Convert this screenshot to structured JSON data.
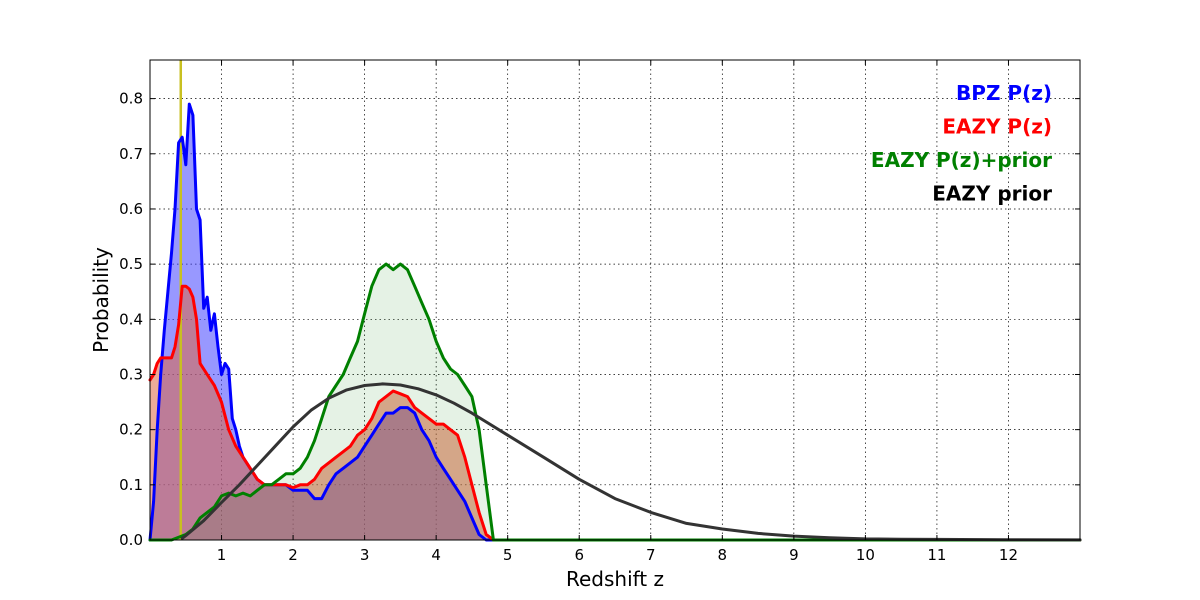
{
  "chart_data": {
    "type": "area",
    "xlabel": "Redshift z",
    "ylabel": "Probability",
    "xlim": [
      0,
      13
    ],
    "ylim": [
      0,
      0.87
    ],
    "grid": true,
    "legend_position": "top-right",
    "x_ticks": [
      1,
      2,
      3,
      4,
      5,
      6,
      7,
      8,
      9,
      10,
      11,
      12
    ],
    "x_tick_labels": [
      "1",
      "2",
      "3",
      "4",
      "5",
      "6",
      "7",
      "8",
      "9",
      "10",
      "11",
      "12"
    ],
    "y_ticks": [
      0.0,
      0.1,
      0.2,
      0.3,
      0.4,
      0.5,
      0.6,
      0.7,
      0.8
    ],
    "y_tick_labels": [
      "0.0",
      "0.1",
      "0.2",
      "0.3",
      "0.4",
      "0.5",
      "0.6",
      "0.7",
      "0.8"
    ],
    "vertical_line": {
      "x": 0.43,
      "color": "#c8c020"
    },
    "series": [
      {
        "name": "BPZ P(z)",
        "color": "#0000ff",
        "fill": "#4444ff",
        "fill_opacity": 0.55,
        "x": [
          0,
          0.05,
          0.1,
          0.15,
          0.2,
          0.25,
          0.3,
          0.35,
          0.4,
          0.45,
          0.5,
          0.55,
          0.6,
          0.65,
          0.7,
          0.75,
          0.8,
          0.85,
          0.9,
          0.95,
          1.0,
          1.05,
          1.1,
          1.15,
          1.2,
          1.25,
          1.3,
          1.4,
          1.5,
          1.6,
          1.7,
          1.8,
          1.9,
          2.0,
          2.1,
          2.2,
          2.3,
          2.4,
          2.5,
          2.6,
          2.7,
          2.8,
          2.9,
          3.0,
          3.1,
          3.2,
          3.3,
          3.4,
          3.5,
          3.6,
          3.7,
          3.8,
          3.9,
          4.0,
          4.1,
          4.2,
          4.3,
          4.4,
          4.5,
          4.6,
          4.7,
          4.8,
          13
        ],
        "values": [
          0.0,
          0.07,
          0.2,
          0.3,
          0.38,
          0.45,
          0.52,
          0.6,
          0.72,
          0.73,
          0.68,
          0.79,
          0.77,
          0.6,
          0.58,
          0.42,
          0.44,
          0.38,
          0.41,
          0.35,
          0.3,
          0.32,
          0.31,
          0.22,
          0.2,
          0.17,
          0.15,
          0.13,
          0.11,
          0.1,
          0.1,
          0.1,
          0.1,
          0.09,
          0.09,
          0.09,
          0.075,
          0.075,
          0.1,
          0.12,
          0.13,
          0.14,
          0.15,
          0.17,
          0.19,
          0.21,
          0.23,
          0.23,
          0.24,
          0.24,
          0.23,
          0.2,
          0.18,
          0.15,
          0.13,
          0.11,
          0.09,
          0.07,
          0.04,
          0.01,
          0.0,
          0.0,
          0.0
        ]
      },
      {
        "name": "EAZY P(z)",
        "color": "#ff0000",
        "fill": "#dd6644",
        "fill_opacity": 0.55,
        "x": [
          0,
          0.05,
          0.1,
          0.15,
          0.2,
          0.3,
          0.35,
          0.4,
          0.45,
          0.5,
          0.55,
          0.6,
          0.65,
          0.7,
          0.8,
          0.9,
          1.0,
          1.1,
          1.2,
          1.3,
          1.4,
          1.5,
          1.6,
          1.7,
          1.8,
          1.9,
          2.0,
          2.1,
          2.2,
          2.3,
          2.4,
          2.5,
          2.6,
          2.7,
          2.8,
          2.9,
          3.0,
          3.1,
          3.2,
          3.3,
          3.4,
          3.5,
          3.6,
          3.7,
          3.8,
          3.9,
          4.0,
          4.1,
          4.2,
          4.3,
          4.4,
          4.5,
          4.6,
          4.7,
          4.8,
          13
        ],
        "values": [
          0.29,
          0.3,
          0.32,
          0.33,
          0.33,
          0.33,
          0.35,
          0.39,
          0.46,
          0.46,
          0.455,
          0.44,
          0.4,
          0.32,
          0.3,
          0.28,
          0.25,
          0.2,
          0.17,
          0.15,
          0.13,
          0.11,
          0.1,
          0.1,
          0.1,
          0.1,
          0.095,
          0.1,
          0.1,
          0.11,
          0.13,
          0.14,
          0.15,
          0.16,
          0.17,
          0.19,
          0.2,
          0.22,
          0.25,
          0.26,
          0.27,
          0.265,
          0.26,
          0.24,
          0.23,
          0.22,
          0.21,
          0.21,
          0.2,
          0.19,
          0.15,
          0.1,
          0.05,
          0.01,
          0.0,
          0.0
        ]
      },
      {
        "name": "EAZY P(z)+prior",
        "color": "#008000",
        "fill": "#008000",
        "fill_opacity": 0.1,
        "x": [
          0,
          0.3,
          0.5,
          0.6,
          0.7,
          0.8,
          0.9,
          1.0,
          1.1,
          1.2,
          1.3,
          1.4,
          1.5,
          1.6,
          1.7,
          1.8,
          1.9,
          2.0,
          2.1,
          2.2,
          2.3,
          2.4,
          2.5,
          2.6,
          2.7,
          2.8,
          2.9,
          3.0,
          3.1,
          3.2,
          3.3,
          3.4,
          3.5,
          3.6,
          3.7,
          3.8,
          3.9,
          4.0,
          4.1,
          4.2,
          4.3,
          4.4,
          4.5,
          4.6,
          4.7,
          4.8,
          13
        ],
        "values": [
          0.0,
          0.0,
          0.01,
          0.02,
          0.04,
          0.05,
          0.06,
          0.08,
          0.085,
          0.08,
          0.085,
          0.08,
          0.09,
          0.1,
          0.1,
          0.11,
          0.12,
          0.12,
          0.13,
          0.15,
          0.18,
          0.22,
          0.26,
          0.28,
          0.3,
          0.33,
          0.36,
          0.41,
          0.46,
          0.49,
          0.5,
          0.49,
          0.5,
          0.49,
          0.46,
          0.43,
          0.4,
          0.36,
          0.33,
          0.31,
          0.3,
          0.28,
          0.26,
          0.2,
          0.1,
          0.0,
          0.0
        ]
      },
      {
        "name": "EAZY prior",
        "color": "#333333",
        "fill": "none",
        "fill_opacity": 0,
        "x": [
          0.45,
          0.5,
          0.75,
          1.0,
          1.25,
          1.5,
          1.75,
          2.0,
          2.25,
          2.5,
          2.75,
          3.0,
          3.25,
          3.5,
          3.75,
          4.0,
          4.25,
          4.5,
          4.75,
          5.0,
          5.5,
          6.0,
          6.5,
          7.0,
          7.5,
          8.0,
          8.5,
          9.0,
          9.5,
          10.0,
          10.5,
          11.0,
          12.0,
          13.0
        ],
        "values": [
          0.003,
          0.008,
          0.035,
          0.068,
          0.1,
          0.135,
          0.17,
          0.205,
          0.235,
          0.257,
          0.272,
          0.28,
          0.283,
          0.281,
          0.274,
          0.263,
          0.248,
          0.23,
          0.21,
          0.19,
          0.15,
          0.11,
          0.075,
          0.05,
          0.03,
          0.02,
          0.012,
          0.007,
          0.004,
          0.002,
          0.0015,
          0.001,
          0.0005,
          0.0002
        ]
      }
    ]
  }
}
